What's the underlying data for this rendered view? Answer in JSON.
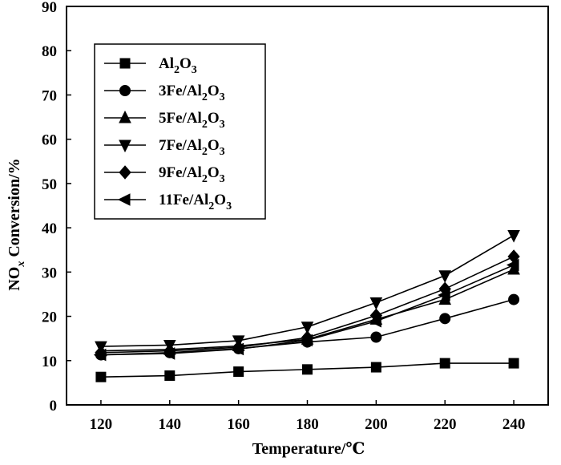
{
  "chart_data": {
    "type": "line",
    "xlabel": "Temperature/℃",
    "ylabel": {
      "prefix": "NO",
      "sub": "x",
      "suffix": " Conversion/%"
    },
    "xlim": [
      110,
      250
    ],
    "ylim": [
      0,
      90
    ],
    "x_ticks": [
      120,
      140,
      160,
      180,
      200,
      220,
      240
    ],
    "y_ticks": [
      0,
      10,
      20,
      30,
      40,
      50,
      60,
      70,
      80,
      90
    ],
    "grid": false,
    "legend_position": "top-left",
    "x": [
      120,
      140,
      160,
      180,
      200,
      220,
      240
    ],
    "series": [
      {
        "name": "Al2O3",
        "label": {
          "parts": [
            "Al",
            "2",
            "O",
            "3"
          ]
        },
        "marker": "square",
        "values": [
          6.3,
          6.6,
          7.5,
          8.0,
          8.5,
          9.4,
          9.4
        ]
      },
      {
        "name": "3Fe/Al2O3",
        "label": {
          "parts": [
            "3Fe/Al",
            "2",
            "O",
            "3"
          ]
        },
        "marker": "circle",
        "values": [
          11.3,
          11.8,
          12.7,
          14.2,
          15.3,
          19.5,
          23.8
        ]
      },
      {
        "name": "5Fe/Al2O3",
        "label": {
          "parts": [
            "5Fe/Al",
            "2",
            "O",
            "3"
          ]
        },
        "marker": "triangle-up",
        "values": [
          12.2,
          12.5,
          13.3,
          14.8,
          19.3,
          23.8,
          30.6
        ]
      },
      {
        "name": "7Fe/Al2O3",
        "label": {
          "parts": [
            "7Fe/Al",
            "2",
            "O",
            "3"
          ]
        },
        "marker": "triangle-down",
        "values": [
          13.2,
          13.5,
          14.5,
          17.6,
          23.1,
          29.2,
          38.3
        ]
      },
      {
        "name": "9Fe/Al2O3",
        "label": {
          "parts": [
            "9Fe/Al",
            "2",
            "O",
            "3"
          ]
        },
        "marker": "diamond",
        "values": [
          11.8,
          12.2,
          13.0,
          15.2,
          20.2,
          26.2,
          33.5
        ]
      },
      {
        "name": "11Fe/Al2O3",
        "label": {
          "parts": [
            "11Fe/Al",
            "2",
            "O",
            "3"
          ]
        },
        "marker": "triangle-left",
        "values": [
          11.3,
          11.6,
          12.6,
          14.6,
          18.9,
          24.8,
          31.6
        ]
      }
    ]
  }
}
